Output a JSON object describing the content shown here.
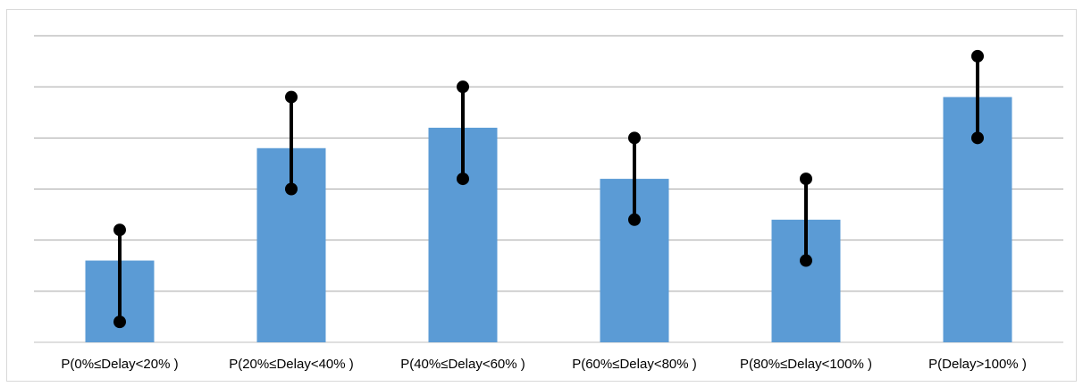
{
  "chart_data": {
    "type": "bar",
    "title": "",
    "xlabel": "",
    "ylabel": "",
    "categories": [
      "P(0%≤Delay<20% )",
      "P(20%≤Delay<40% )",
      "P(40%≤Delay<60% )",
      "P(60%≤Delay<80% )",
      "P(80%≤Delay<100% )",
      "P(Delay>100% )"
    ],
    "values": [
      1.6,
      3.8,
      4.2,
      3.2,
      2.4,
      4.8
    ],
    "ranges": [
      [
        0.4,
        2.2
      ],
      [
        3.0,
        4.8
      ],
      [
        3.2,
        5.0
      ],
      [
        2.4,
        4.0
      ],
      [
        1.6,
        3.2
      ],
      [
        4.0,
        5.6
      ]
    ],
    "ylim": [
      0,
      6
    ],
    "grid": true,
    "bar_color": "#5b9bd5",
    "range_color": "#000000",
    "gridline_color": "#a6a6a6"
  }
}
